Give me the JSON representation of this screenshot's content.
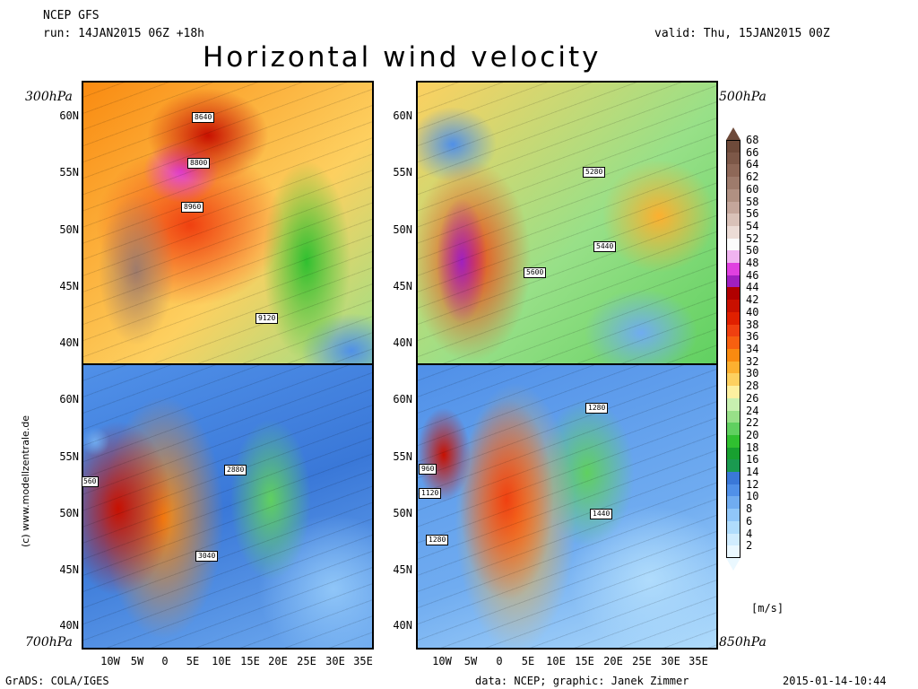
{
  "header": {
    "model": "NCEP GFS",
    "run": "run: 14JAN2015 06Z +18h",
    "valid": "valid: Thu, 15JAN2015 00Z",
    "title": "Horizontal wind velocity"
  },
  "panels": [
    {
      "level": "300hPa",
      "contours": [
        "8640",
        "8800",
        "8960",
        "9120"
      ]
    },
    {
      "level": "500hPa",
      "contours": [
        "5280",
        "5440",
        "5600"
      ]
    },
    {
      "level": "700hPa",
      "contours": [
        "2880",
        "3040",
        "560"
      ]
    },
    {
      "level": "850hPa",
      "contours": [
        "1280",
        "1440",
        "960",
        "1120",
        "1280"
      ]
    }
  ],
  "lat_labels": [
    "60N",
    "55N",
    "50N",
    "45N",
    "40N"
  ],
  "lon_labels": [
    "10W",
    "5W",
    "0",
    "5E",
    "10E",
    "15E",
    "20E",
    "25E",
    "30E",
    "35E"
  ],
  "legend": {
    "unit": "[m/s]",
    "values": [
      "68",
      "66",
      "64",
      "62",
      "60",
      "58",
      "56",
      "54",
      "52",
      "50",
      "48",
      "46",
      "44",
      "42",
      "40",
      "38",
      "36",
      "34",
      "32",
      "30",
      "28",
      "26",
      "24",
      "22",
      "20",
      "18",
      "16",
      "14",
      "12",
      "10",
      "8",
      "6",
      "4",
      "2"
    ],
    "colors": [
      "#6e4a3a",
      "#7d5848",
      "#8e6858",
      "#9e7b6c",
      "#b09082",
      "#c4a69b",
      "#d9c1b8",
      "#ecdcd6",
      "#fbfbfb",
      "#f0b4f0",
      "#e040e0",
      "#a020c0",
      "#b00000",
      "#c81000",
      "#e02000",
      "#f04010",
      "#f86010",
      "#fa8a10",
      "#fcb030",
      "#fdd060",
      "#fdf0a0",
      "#c8f0b0",
      "#98e088",
      "#60d060",
      "#30c030",
      "#18a030",
      "#1a9a50",
      "#3a78d8",
      "#5090e8",
      "#70acf0",
      "#90c6f8",
      "#b0dcfc",
      "#d0ecfe",
      "#eaf8ff"
    ]
  },
  "footer": {
    "left": "GrADS: COLA/IGES",
    "center": "data: NCEP; graphic: Janek Zimmer",
    "right": "2015-01-14-10:44"
  },
  "credit": "(c) www.modellzentrale.de"
}
